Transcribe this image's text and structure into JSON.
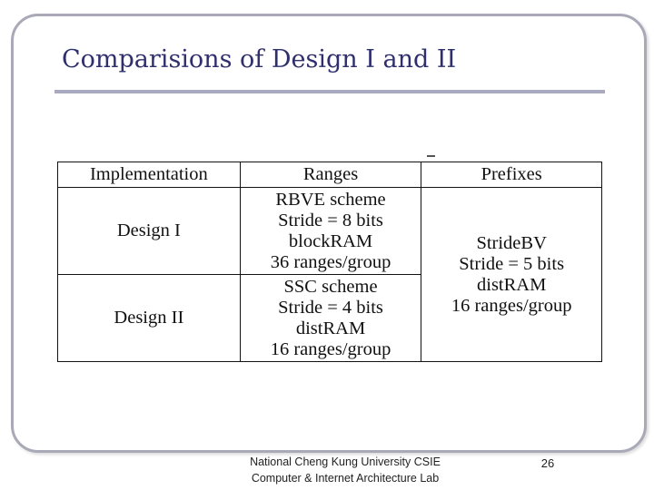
{
  "slide": {
    "title": "Comparisions of Design I and II",
    "table": {
      "headers": [
        "Implementation",
        "Ranges",
        "Prefixes"
      ],
      "rows": [
        {
          "implementation": "Design I",
          "ranges": [
            "RBVE scheme",
            "Stride = 8 bits",
            "blockRAM",
            "36 ranges/group"
          ]
        },
        {
          "implementation": "Design II",
          "ranges": [
            "SSC scheme",
            "Stride = 4 bits",
            "distRAM",
            "16 ranges/group"
          ]
        }
      ],
      "prefixes": [
        "StrideBV",
        "Stride = 5 bits",
        "distRAM",
        "16 ranges/group"
      ]
    },
    "footer": {
      "line1": "National Cheng Kung University CSIE",
      "line2": "Computer & Internet Architecture Lab"
    },
    "page_number": "26"
  },
  "colors": {
    "title": "#2f2f6e",
    "rule": "#a9a9c2",
    "frame": "#a9a9b8"
  }
}
